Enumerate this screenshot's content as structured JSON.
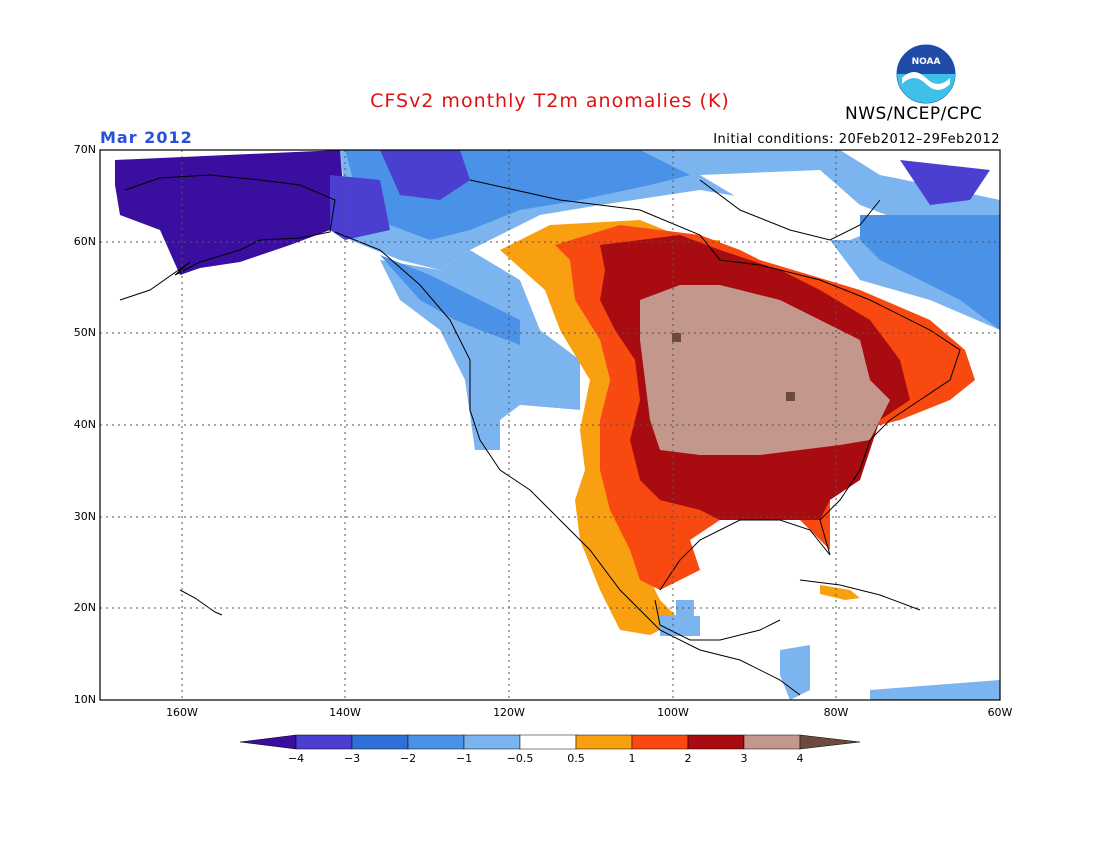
{
  "title": "CFSv2 monthly T2m anomalies (K)",
  "valid_month": "Mar 2012",
  "initial_conditions": "Initial conditions: 20Feb2012–29Feb2012",
  "agency": "NWS/NCEP/CPC",
  "logo_text": "NOAA",
  "lat_ticks": [
    "70N",
    "60N",
    "50N",
    "40N",
    "30N",
    "20N",
    "10N"
  ],
  "lon_ticks": [
    "160W",
    "140W",
    "120W",
    "100W",
    "80W",
    "60W"
  ],
  "colorbar": {
    "labels": [
      "−4",
      "−3",
      "−2",
      "−1",
      "−0.5",
      "0.5",
      "1",
      "2",
      "3",
      "4"
    ],
    "colors": [
      "#3a0fa0",
      "#4a3fd0",
      "#2f6fd8",
      "#4a92e8",
      "#7cb4f0",
      "#ffffff",
      "#f8a010",
      "#f84a10",
      "#a80c10",
      "#c4978c",
      "#6e4a3e"
    ]
  },
  "map": {
    "extent_lon": [
      -170,
      -60
    ],
    "extent_lat": [
      10,
      70
    ],
    "projection": "lat-lon"
  }
}
